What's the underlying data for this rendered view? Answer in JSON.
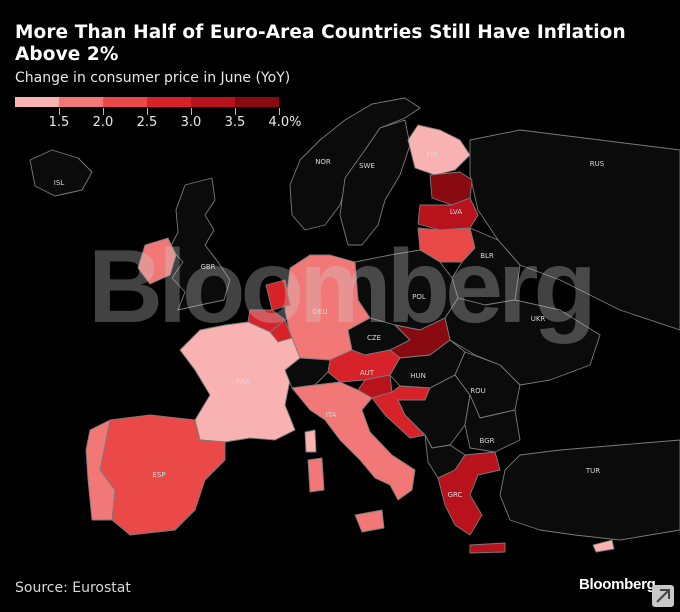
{
  "header": {
    "title": "More Than Half of Euro-Area Countries Still Have Inflation Above 2%",
    "subtitle": "Change in consumer price in June (YoY)"
  },
  "legend": {
    "colors": [
      "#f9b2b2",
      "#f27878",
      "#eb4848",
      "#d8222a",
      "#b8121c",
      "#8a0a12"
    ],
    "labels": [
      "1.5",
      "2.0",
      "2.5",
      "3.0",
      "3.5",
      "4.0%"
    ]
  },
  "colors": {
    "background": "#000000",
    "non_euro_land": "#0b0b0b",
    "borders": "#7a7a7a"
  },
  "map": {
    "country_labels": [
      "NOR",
      "SWE",
      "FIN",
      "RUS",
      "ISL",
      "LVA",
      "GBR",
      "BLR",
      "DEU",
      "POL",
      "UKR",
      "CZE",
      "FRA",
      "AUT",
      "HUN",
      "ROU",
      "ITA",
      "BGR",
      "ESP",
      "TUR",
      "GRC"
    ]
  },
  "watermark": "Bloomberg",
  "footer": {
    "source": "Source: Eurostat",
    "brand": "Bloomberg"
  }
}
